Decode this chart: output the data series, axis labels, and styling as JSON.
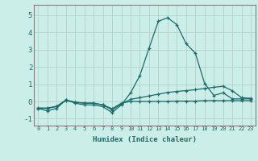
{
  "xlabel": "Humidex (Indice chaleur)",
  "background_color": "#cceee8",
  "grid_color": "#b8d4ce",
  "line_color": "#1a6b6b",
  "xlim": [
    -0.5,
    23.5
  ],
  "ylim": [
    -1.4,
    5.6
  ],
  "xticks": [
    0,
    1,
    2,
    3,
    4,
    5,
    6,
    7,
    8,
    9,
    10,
    11,
    12,
    13,
    14,
    15,
    16,
    17,
    18,
    19,
    20,
    21,
    22,
    23
  ],
  "yticks": [
    -1,
    0,
    1,
    2,
    3,
    4,
    5
  ],
  "series": [
    [
      -0.4,
      -0.55,
      -0.4,
      0.1,
      -0.1,
      -0.2,
      -0.2,
      -0.3,
      -0.65,
      -0.2,
      0.5,
      1.5,
      3.1,
      4.65,
      4.85,
      4.45,
      3.35,
      2.8,
      1.05,
      0.35,
      0.5,
      0.15,
      0.15,
      0.15
    ],
    [
      -0.4,
      -0.4,
      -0.3,
      0.05,
      -0.05,
      -0.1,
      -0.1,
      -0.2,
      -0.42,
      -0.1,
      0.0,
      0.0,
      0.0,
      0.0,
      0.0,
      0.02,
      0.02,
      0.02,
      0.05,
      0.05,
      0.05,
      0.05,
      0.05,
      0.05
    ],
    [
      -0.38,
      -0.38,
      -0.28,
      0.08,
      -0.04,
      -0.1,
      -0.1,
      -0.2,
      -0.5,
      -0.14,
      0.12,
      0.22,
      0.32,
      0.42,
      0.52,
      0.58,
      0.63,
      0.68,
      0.75,
      0.82,
      0.88,
      0.62,
      0.22,
      0.18
    ]
  ]
}
